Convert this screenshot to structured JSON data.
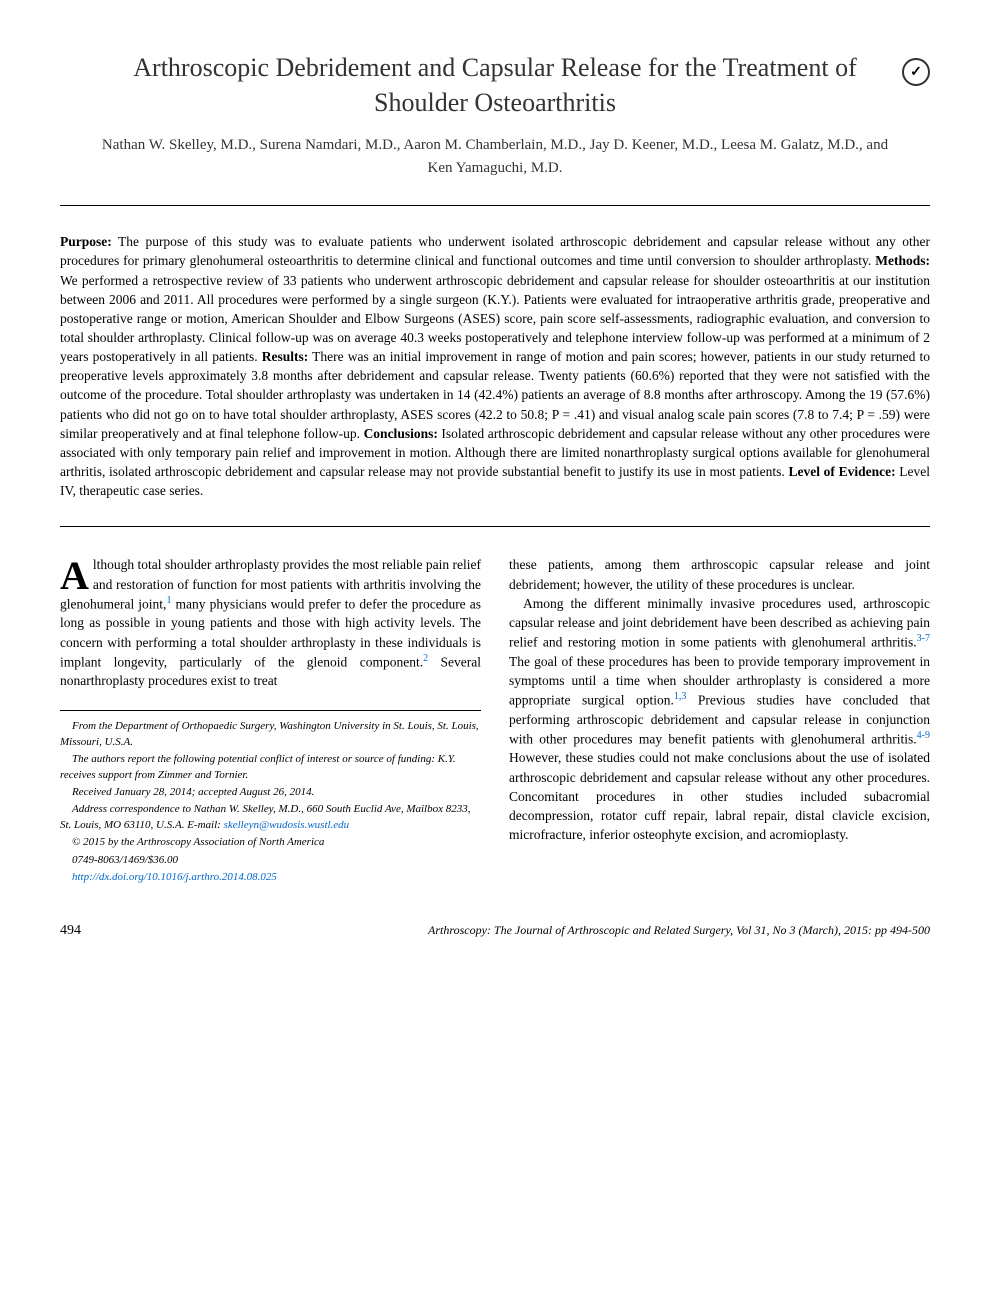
{
  "article": {
    "title": "Arthroscopic Debridement and Capsular Release for the Treatment of Shoulder Osteoarthritis",
    "authors": "Nathan W. Skelley, M.D., Surena Namdari, M.D., Aaron M. Chamberlain, M.D., Jay D. Keener, M.D., Leesa M. Galatz, M.D., and Ken Yamaguchi, M.D."
  },
  "abstract": {
    "purpose_label": "Purpose:",
    "purpose": " The purpose of this study was to evaluate patients who underwent isolated arthroscopic debridement and capsular release without any other procedures for primary glenohumeral osteoarthritis to determine clinical and functional outcomes and time until conversion to shoulder arthroplasty. ",
    "methods_label": "Methods:",
    "methods": " We performed a retrospective review of 33 patients who underwent arthroscopic debridement and capsular release for shoulder osteoarthritis at our institution between 2006 and 2011. All procedures were performed by a single surgeon (K.Y.). Patients were evaluated for intraoperative arthritis grade, preoperative and postoperative range or motion, American Shoulder and Elbow Surgeons (ASES) score, pain score self-assessments, radiographic evaluation, and conversion to total shoulder arthroplasty. Clinical follow-up was on average 40.3 weeks postoperatively and telephone interview follow-up was performed at a minimum of 2 years postoperatively in all patients. ",
    "results_label": "Results:",
    "results": " There was an initial improvement in range of motion and pain scores; however, patients in our study returned to preoperative levels approximately 3.8 months after debridement and capsular release. Twenty patients (60.6%) reported that they were not satisfied with the outcome of the procedure. Total shoulder arthroplasty was undertaken in 14 (42.4%) patients an average of 8.8 months after arthroscopy. Among the 19 (57.6%) patients who did not go on to have total shoulder arthroplasty, ASES scores (42.2 to 50.8; P = .41) and visual analog scale pain scores (7.8 to 7.4; P = .59) were similar preoperatively and at final telephone follow-up. ",
    "conclusions_label": "Conclusions:",
    "conclusions": " Isolated arthroscopic debridement and capsular release without any other procedures were associated with only temporary pain relief and improvement in motion. Although there are limited nonarthroplasty surgical options available for glenohumeral arthritis, isolated arthroscopic debridement and capsular release may not provide substantial benefit to justify its use in most patients. ",
    "level_label": "Level of Evidence:",
    "level": " Level IV, therapeutic case series."
  },
  "body": {
    "col1": {
      "dropcap": "A",
      "p1_start": "lthough total shoulder arthroplasty provides the most reliable pain relief and restoration of function for most patients with arthritis involving the glenohumeral joint,",
      "ref1": "1",
      "p1_mid": " many physicians would prefer to defer the procedure as long as possible in young patients and those with high activity levels. The concern with performing a total shoulder arthroplasty in these individuals is implant longevity, particularly of the glenoid component.",
      "ref2": "2",
      "p1_end": " Several nonarthroplasty procedures exist to treat"
    },
    "col2": {
      "p1": "these patients, among them arthroscopic capsular release and joint debridement; however, the utility of these procedures is unclear.",
      "p2_a": "Among the different minimally invasive procedures used, arthroscopic capsular release and joint debridement have been described as achieving pain relief and restoring motion in some patients with glenohumeral arthritis.",
      "ref3": "3-7",
      "p2_b": " The goal of these procedures has been to provide temporary improvement in symptoms until a time when shoulder arthroplasty is considered a more appropriate surgical option.",
      "ref4": "1,3",
      "p2_c": " Previous studies have concluded that performing arthroscopic debridement and capsular release in conjunction with other procedures may benefit patients with glenohumeral arthritis.",
      "ref5": "4-9",
      "p2_d": " However, these studies could not make conclusions about the use of isolated arthroscopic debridement and capsular release without any other procedures. Concomitant procedures in other studies included subacromial decompression, rotator cuff repair, labral repair, distal clavicle excision, microfracture, inferior osteophyte excision, and acromioplasty."
    }
  },
  "footnotes": {
    "affiliation": "From the Department of Orthopaedic Surgery, Washington University in St. Louis, St. Louis, Missouri, U.S.A.",
    "conflict": "The authors report the following potential conflict of interest or source of funding: K.Y. receives support from Zimmer and Tornier.",
    "dates": "Received January 28, 2014; accepted August 26, 2014.",
    "correspondence": "Address correspondence to Nathan W. Skelley, M.D., 660 South Euclid Ave, Mailbox 8233, St. Louis, MO 63110, U.S.A. E-mail: ",
    "email": "skelleyn@wudosis.wustl.edu",
    "copyright": "© 2015 by the Arthroscopy Association of North America",
    "issn": "0749-8063/1469/$36.00",
    "doi": "http://dx.doi.org/10.1016/j.arthro.2014.08.025"
  },
  "footer": {
    "page": "494",
    "citation": "Arthroscopy: The Journal of Arthroscopic and Related Surgery, Vol 31, No 3 (March), 2015: pp 494-500"
  },
  "colors": {
    "text": "#000000",
    "link": "#0066cc",
    "background": "#ffffff"
  },
  "typography": {
    "title_fontsize": 26,
    "authors_fontsize": 15,
    "abstract_fontsize": 13.5,
    "body_fontsize": 13.5,
    "footnote_fontsize": 11,
    "dropcap_fontsize": 40
  }
}
